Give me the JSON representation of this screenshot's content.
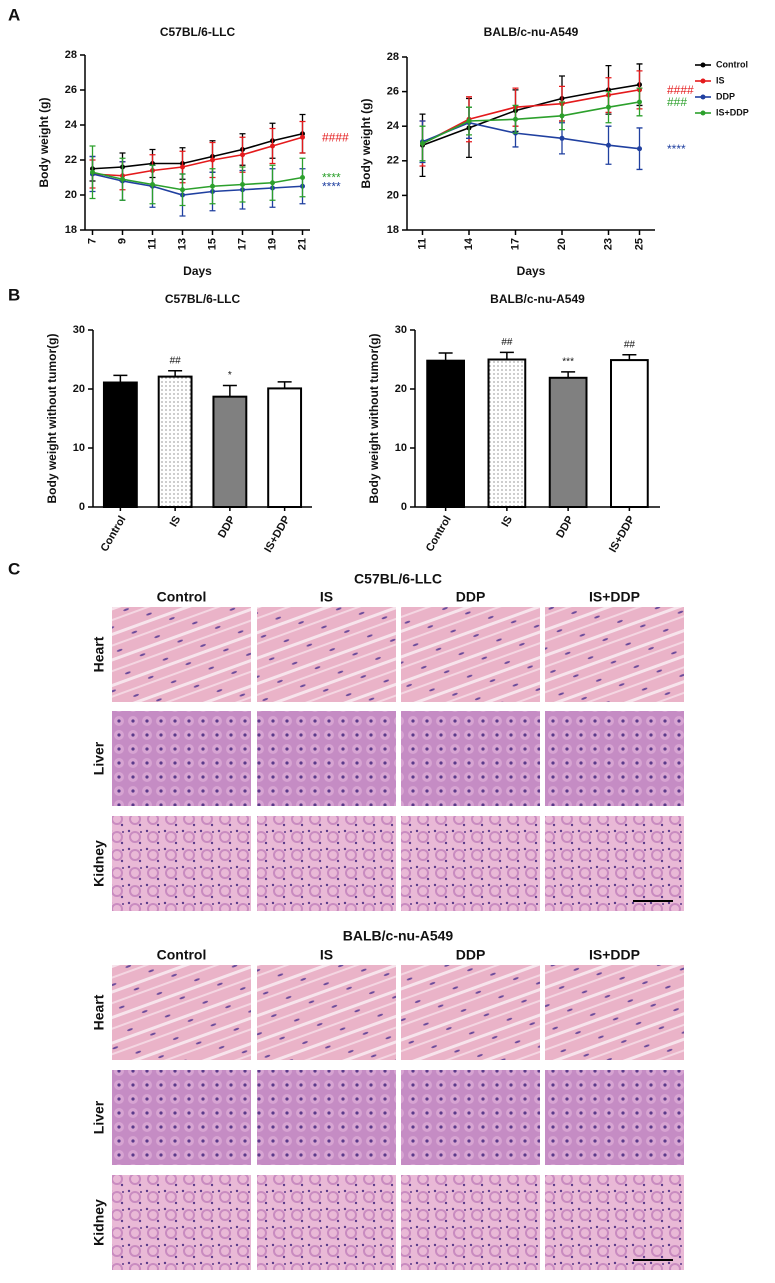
{
  "panel_labels": [
    "A",
    "B",
    "C"
  ],
  "chart_data": [
    {
      "type": "line",
      "title": "C57BL/6-LLC",
      "x_label": "Days",
      "y_label": "Body weight (g)",
      "x": [
        7,
        9,
        11,
        13,
        15,
        17,
        19,
        21
      ],
      "xlim": [
        6.5,
        21.5
      ],
      "xticks": [
        7,
        9,
        11,
        13,
        15,
        17,
        19,
        21
      ],
      "ylim": [
        18,
        28
      ],
      "yticks": [
        18,
        20,
        22,
        24,
        26,
        28
      ],
      "series": [
        {
          "name": "Control",
          "color": "#000000",
          "values": [
            21.5,
            21.6,
            21.8,
            21.8,
            22.2,
            22.6,
            23.1,
            23.5
          ],
          "errors": [
            0.7,
            0.8,
            0.8,
            0.9,
            0.9,
            0.9,
            1.0,
            1.1
          ]
        },
        {
          "name": "IS",
          "color": "#e41a1c",
          "values": [
            21.2,
            21.1,
            21.4,
            21.6,
            22.0,
            22.3,
            22.8,
            23.3
          ],
          "errors": [
            0.8,
            0.8,
            0.9,
            0.9,
            1.0,
            1.0,
            1.0,
            0.9
          ],
          "annotation": "####"
        },
        {
          "name": "DDP",
          "color": "#2040a0",
          "values": [
            21.2,
            20.8,
            20.5,
            20.0,
            20.2,
            20.3,
            20.4,
            20.5
          ],
          "errors": [
            1.0,
            1.1,
            1.2,
            1.2,
            1.1,
            1.1,
            1.1,
            1.0
          ],
          "annotation": "****"
        },
        {
          "name": "IS+DDP",
          "color": "#2ca02c",
          "values": [
            21.3,
            20.9,
            20.6,
            20.3,
            20.5,
            20.6,
            20.7,
            21.0
          ],
          "errors": [
            1.5,
            1.2,
            1.1,
            0.9,
            1.0,
            1.0,
            1.0,
            1.1
          ],
          "annotation": "****"
        }
      ]
    },
    {
      "type": "line",
      "title": "BALB/c-nu-A549",
      "x_label": "Days",
      "y_label": "Body weight (g)",
      "x": [
        11,
        14,
        17,
        20,
        23,
        25
      ],
      "xlim": [
        10,
        26
      ],
      "xticks": [
        11,
        14,
        17,
        20,
        23,
        25
      ],
      "ylim": [
        18,
        28
      ],
      "yticks": [
        18,
        20,
        22,
        24,
        26,
        28
      ],
      "legend": "right",
      "series": [
        {
          "name": "Control",
          "color": "#000000",
          "values": [
            22.9,
            23.9,
            24.9,
            25.6,
            26.1,
            26.4
          ],
          "errors": [
            1.8,
            1.7,
            1.2,
            1.3,
            1.4,
            1.2
          ]
        },
        {
          "name": "IS",
          "color": "#e41a1c",
          "values": [
            23.0,
            24.4,
            25.1,
            25.3,
            25.8,
            26.1
          ],
          "errors": [
            1.3,
            1.3,
            1.1,
            1.0,
            1.0,
            1.1
          ],
          "annotation": "####"
        },
        {
          "name": "DDP",
          "color": "#2040a0",
          "values": [
            23.1,
            24.2,
            23.6,
            23.3,
            22.9,
            22.7
          ],
          "errors": [
            1.2,
            0.9,
            0.8,
            0.9,
            1.1,
            1.2
          ],
          "annotation": "****"
        },
        {
          "name": "IS+DDP",
          "color": "#2ca02c",
          "values": [
            23.0,
            24.3,
            24.4,
            24.6,
            25.1,
            25.4
          ],
          "errors": [
            1.0,
            0.8,
            0.8,
            0.8,
            0.9,
            0.8
          ],
          "annotation": "###"
        }
      ]
    },
    {
      "type": "bar",
      "title": "C57BL/6-LLC",
      "y_label": "Body weight without tumor(g)",
      "categories": [
        "Control",
        "IS",
        "DDP",
        "IS+DDP"
      ],
      "values": [
        21.1,
        22.1,
        18.7,
        20.1
      ],
      "errors": [
        1.2,
        1.0,
        1.9,
        1.1
      ],
      "annotations": [
        null,
        "##",
        "*",
        null
      ],
      "colors": [
        "#000000",
        "#ffffff",
        "#808080",
        "#ffffff"
      ],
      "patterns": [
        null,
        "dots",
        null,
        null
      ],
      "ylim": [
        0,
        30
      ],
      "yticks": [
        0,
        10,
        20,
        30
      ]
    },
    {
      "type": "bar",
      "title": "BALB/c-nu-A549",
      "y_label": "Body weight without tumor(g)",
      "categories": [
        "Control",
        "IS",
        "DDP",
        "IS+DDP"
      ],
      "values": [
        24.8,
        25.0,
        21.9,
        24.9
      ],
      "errors": [
        1.3,
        1.2,
        1.0,
        0.9
      ],
      "annotations": [
        null,
        "##",
        "***",
        "##"
      ],
      "colors": [
        "#000000",
        "#ffffff",
        "#808080",
        "#ffffff"
      ],
      "patterns": [
        null,
        "dots",
        null,
        null
      ],
      "ylim": [
        0,
        30
      ],
      "yticks": [
        0,
        10,
        20,
        30
      ]
    }
  ],
  "histology": [
    {
      "title": "C57BL/6-LLC",
      "columns": [
        "Control",
        "IS",
        "DDP",
        "IS+DDP"
      ],
      "rows": [
        "Heart",
        "Liver",
        "Kidney"
      ]
    },
    {
      "title": "BALB/c-nu-A549",
      "columns": [
        "Control",
        "IS",
        "DDP",
        "IS+DDP"
      ],
      "rows": [
        "Heart",
        "Liver",
        "Kidney"
      ]
    }
  ]
}
